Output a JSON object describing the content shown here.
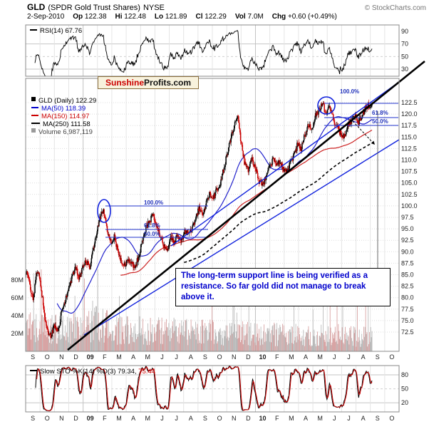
{
  "header": {
    "symbol": "GLD",
    "name": "(SPDR Gold Trust Shares)",
    "exchange": "NYSE",
    "copyright": "© StockCharts.com",
    "date": "2-Sep-2010",
    "quote": [
      {
        "label": "Op",
        "value": "122.38"
      },
      {
        "label": "Hi",
        "value": "122.48"
      },
      {
        "label": "Lo",
        "value": "121.89"
      },
      {
        "label": "Cl",
        "value": "122.29"
      },
      {
        "label": "Vol",
        "value": "7.0M"
      },
      {
        "label": "Chg",
        "value": "+0.60 (+0.49%)"
      }
    ]
  },
  "watermark": {
    "brand_red": "Sunshine",
    "brand_black": "Profits.com"
  },
  "rsi_panel": {
    "legend": "RSI(14) 67.76",
    "ticks": [
      90,
      70,
      50,
      30
    ]
  },
  "main_legend": {
    "title": "GLD (Daily) 122.29",
    "ma50": "MA(50) 118.39",
    "ma150": "MA(150) 114.97",
    "ma250": "MA(250) 111.58",
    "volume": "Volume 6,987,119"
  },
  "annotations": {
    "note": "The long-term support line is being verified as a resistance. So far gold did not manage to break above it.",
    "fib_left": [
      "100.0%",
      "61.8%",
      "50.0%"
    ],
    "fib_right": [
      "100.0%",
      "61.8%",
      "50.0%"
    ]
  },
  "sto_panel": {
    "legend_prefix": "Slow STO %K(14) %D(3)",
    "k_value": "79.34,",
    "d_value": "75.44",
    "ticks": [
      80,
      50,
      20
    ]
  },
  "chart_data": {
    "type": "candlestick",
    "title": "GLD (Daily)",
    "period": "Sep-2008 to Sep-2010",
    "price_axis": {
      "min": 72.5,
      "max": 122.5,
      "step": 2.5,
      "side": "right"
    },
    "volume_axis_labels": [
      "80M",
      "60M",
      "40M",
      "20M"
    ],
    "month_labels": [
      "S",
      "O",
      "N",
      "D",
      "09",
      "F",
      "M",
      "A",
      "M",
      "J",
      "J",
      "A",
      "S",
      "O",
      "N",
      "D",
      "10",
      "F",
      "M",
      "A",
      "M",
      "J",
      "J",
      "A",
      "S",
      "O"
    ],
    "weekly_close_anchors": [
      85.5,
      83,
      79.5,
      86,
      84,
      77.5,
      73,
      71.5,
      74,
      72.5,
      76.5,
      79,
      81.5,
      84.5,
      86.5,
      84.5,
      86.5,
      88.5,
      86,
      90,
      94,
      97.5,
      98.8,
      95,
      92,
      93.5,
      90,
      88,
      87,
      88.5,
      87.5,
      86.5,
      89.5,
      92,
      95.5,
      96.5,
      98,
      95.5,
      93.5,
      91.5,
      90.5,
      93,
      92,
      93.5,
      92.5,
      94.5,
      93.5,
      95,
      97.5,
      99.5,
      98.5,
      100.5,
      102.5,
      101.5,
      103.5,
      105,
      108,
      111.5,
      114.5,
      117.5,
      119.2,
      113.5,
      109,
      107.5,
      110.5,
      108,
      105.5,
      104.5,
      106.5,
      108.5,
      110,
      108.5,
      110,
      107.5,
      108,
      109.5,
      111.5,
      113.5,
      112.5,
      115.5,
      118,
      116.5,
      119.5,
      121,
      122,
      120.5,
      121.8,
      119,
      117,
      116,
      114.8,
      117,
      118.5,
      120,
      118,
      119.5,
      121,
      121.8,
      122.29
    ],
    "last": {
      "open": 122.38,
      "high": 122.48,
      "low": 121.89,
      "close": 122.29,
      "volume": 6987119,
      "change": "+0.60 (+0.49%)",
      "ma50": 118.39,
      "ma150": 114.97,
      "ma250": 111.58,
      "rsi14": 67.76,
      "slow_sto_k": 79.34,
      "slow_sto_d": 75.44
    }
  }
}
